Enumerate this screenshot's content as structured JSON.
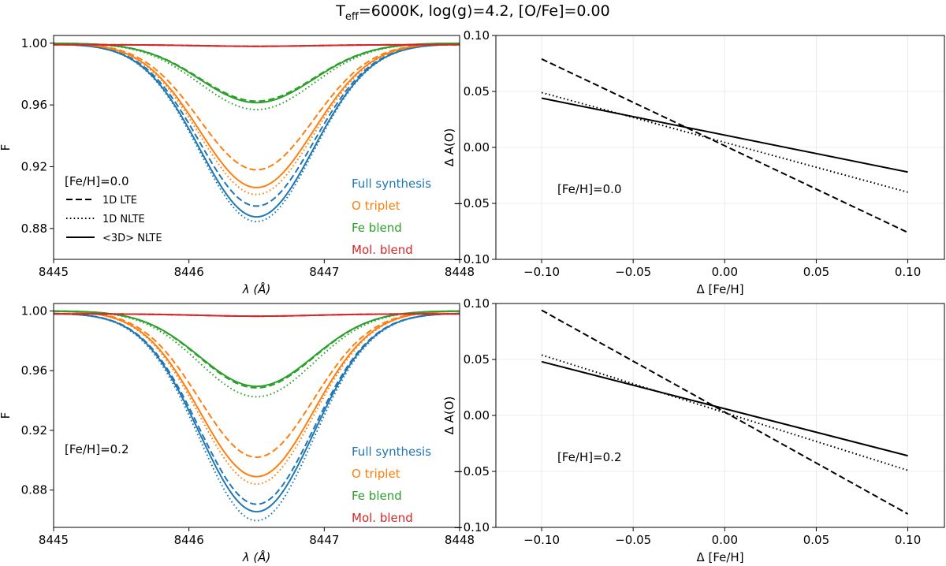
{
  "figure": {
    "title_prefix": "T",
    "title_subscript": "eff",
    "title_suffix": "=6000K, log(g)=4.2, [O/Fe]=0.00"
  },
  "chart_data": [
    {
      "id": "top-left",
      "type": "line",
      "xlabel": "λ (Å)",
      "ylabel": "F",
      "xlim": [
        8445,
        8448
      ],
      "ylim": [
        0.86,
        1.005
      ],
      "xticks": [
        8445,
        8446,
        8447,
        8448
      ],
      "xtick_labels": [
        "8445",
        "8446",
        "8447",
        "8448"
      ],
      "yticks": [
        0.88,
        0.92,
        0.96,
        1.0
      ],
      "ytick_labels": [
        "0.88",
        "0.92",
        "0.96",
        "1.00"
      ],
      "grid": false,
      "line_profile": {
        "center": 8446.5,
        "sigma": 0.42
      },
      "annotation": "[Fe/H]=0.0",
      "style_legend": [
        {
          "label": "1D LTE",
          "dash": "dashed"
        },
        {
          "label": "1D NLTE",
          "dash": "dotted"
        },
        {
          "label": "<3D> NLTE",
          "dash": "solid"
        }
      ],
      "component_legend": [
        {
          "label": "Full synthesis",
          "color": "#1f77b4"
        },
        {
          "label": "O triplet",
          "color": "#ff7f0e"
        },
        {
          "label": "Fe blend",
          "color": "#2ca02c"
        },
        {
          "label": "Mol. blend",
          "color": "#d62728"
        }
      ],
      "series": [
        {
          "name": "Full synthesis 1D LTE",
          "color": "#1f77b4",
          "dash": "dashed",
          "baseline": 0.9995,
          "min": 0.8945
        },
        {
          "name": "Full synthesis 1D NLTE",
          "color": "#1f77b4",
          "dash": "dotted",
          "baseline": 0.9995,
          "min": 0.8845
        },
        {
          "name": "Full synthesis <3D> NLTE",
          "color": "#1f77b4",
          "dash": "solid",
          "baseline": 0.9995,
          "min": 0.8875
        },
        {
          "name": "O triplet 1D LTE",
          "color": "#ff7f0e",
          "dash": "dashed",
          "baseline": 1.0,
          "min": 0.918
        },
        {
          "name": "O triplet 1D NLTE",
          "color": "#ff7f0e",
          "dash": "dotted",
          "baseline": 1.0,
          "min": 0.902
        },
        {
          "name": "O triplet <3D> NLTE",
          "color": "#ff7f0e",
          "dash": "solid",
          "baseline": 1.0,
          "min": 0.9065
        },
        {
          "name": "Fe blend 1D LTE",
          "color": "#2ca02c",
          "dash": "dashed",
          "baseline": 1.0,
          "min": 0.9625
        },
        {
          "name": "Fe blend 1D NLTE",
          "color": "#2ca02c",
          "dash": "dotted",
          "baseline": 1.0,
          "min": 0.957
        },
        {
          "name": "Fe blend <3D> NLTE",
          "color": "#2ca02c",
          "dash": "solid",
          "baseline": 1.0,
          "min": 0.9615
        },
        {
          "name": "Mol. blend 1D LTE",
          "color": "#d62728",
          "dash": "dashed",
          "baseline": 0.999,
          "min": 0.998
        },
        {
          "name": "Mol. blend 1D NLTE",
          "color": "#d62728",
          "dash": "dotted",
          "baseline": 0.999,
          "min": 0.998
        },
        {
          "name": "Mol. blend <3D> NLTE",
          "color": "#d62728",
          "dash": "solid",
          "baseline": 0.999,
          "min": 0.998
        }
      ]
    },
    {
      "id": "top-right",
      "type": "line",
      "xlabel": "Δ [Fe/H]",
      "ylabel": "Δ A(O)",
      "xlim": [
        -0.125,
        0.12
      ],
      "ylim": [
        -0.1,
        0.1
      ],
      "xticks": [
        -0.1,
        -0.05,
        0.0,
        0.05,
        0.1
      ],
      "xtick_labels": [
        "−0.10",
        "−0.05",
        "0.00",
        "0.05",
        "0.10"
      ],
      "yticks": [
        -0.1,
        -0.05,
        0.0,
        0.05,
        0.1
      ],
      "ytick_labels": [
        "−0.10",
        "−0.05",
        "0.00",
        "0.05",
        "0.10"
      ],
      "grid": true,
      "annotation": "[Fe/H]=0.0",
      "series": [
        {
          "name": "1D LTE",
          "dash": "dashed",
          "x": [
            -0.1,
            0.1
          ],
          "y": [
            0.079,
            -0.076
          ]
        },
        {
          "name": "1D NLTE",
          "dash": "dotted",
          "x": [
            -0.1,
            0.1
          ],
          "y": [
            0.049,
            -0.04
          ]
        },
        {
          "name": "<3D> NLTE",
          "dash": "solid",
          "x": [
            -0.1,
            0.1
          ],
          "y": [
            0.044,
            -0.022
          ]
        }
      ]
    },
    {
      "id": "bottom-left",
      "type": "line",
      "xlabel": "λ (Å)",
      "ylabel": "F",
      "xlim": [
        8445,
        8448
      ],
      "ylim": [
        0.855,
        1.005
      ],
      "xticks": [
        8445,
        8446,
        8447,
        8448
      ],
      "xtick_labels": [
        "8445",
        "8446",
        "8447",
        "8448"
      ],
      "yticks": [
        0.88,
        0.92,
        0.96,
        1.0
      ],
      "ytick_labels": [
        "0.88",
        "0.92",
        "0.96",
        "1.00"
      ],
      "grid": false,
      "line_profile": {
        "center": 8446.5,
        "sigma": 0.42
      },
      "annotation": "[Fe/H]=0.2",
      "component_legend": [
        {
          "label": "Full synthesis",
          "color": "#1f77b4"
        },
        {
          "label": "O triplet",
          "color": "#ff7f0e"
        },
        {
          "label": "Fe blend",
          "color": "#2ca02c"
        },
        {
          "label": "Mol. blend",
          "color": "#d62728"
        }
      ],
      "series": [
        {
          "name": "Full synthesis 1D LTE",
          "color": "#1f77b4",
          "dash": "dashed",
          "baseline": 0.9985,
          "min": 0.8705
        },
        {
          "name": "Full synthesis 1D NLTE",
          "color": "#1f77b4",
          "dash": "dotted",
          "baseline": 0.9985,
          "min": 0.8595
        },
        {
          "name": "Full synthesis <3D> NLTE",
          "color": "#1f77b4",
          "dash": "solid",
          "baseline": 0.9985,
          "min": 0.8655
        },
        {
          "name": "O triplet 1D LTE",
          "color": "#ff7f0e",
          "dash": "dashed",
          "baseline": 1.0,
          "min": 0.902
        },
        {
          "name": "O triplet 1D NLTE",
          "color": "#ff7f0e",
          "dash": "dotted",
          "baseline": 1.0,
          "min": 0.884
        },
        {
          "name": "O triplet <3D> NLTE",
          "color": "#ff7f0e",
          "dash": "solid",
          "baseline": 1.0,
          "min": 0.889
        },
        {
          "name": "Fe blend 1D LTE",
          "color": "#2ca02c",
          "dash": "dashed",
          "baseline": 1.0,
          "min": 0.9485
        },
        {
          "name": "Fe blend 1D NLTE",
          "color": "#2ca02c",
          "dash": "dotted",
          "baseline": 1.0,
          "min": 0.9425
        },
        {
          "name": "Fe blend <3D> NLTE",
          "color": "#2ca02c",
          "dash": "solid",
          "baseline": 1.0,
          "min": 0.9495
        },
        {
          "name": "Mol. blend 1D LTE",
          "color": "#d62728",
          "dash": "dashed",
          "baseline": 0.998,
          "min": 0.9965
        },
        {
          "name": "Mol. blend 1D NLTE",
          "color": "#d62728",
          "dash": "dotted",
          "baseline": 0.998,
          "min": 0.9965
        },
        {
          "name": "Mol. blend <3D> NLTE",
          "color": "#d62728",
          "dash": "solid",
          "baseline": 0.998,
          "min": 0.9965
        }
      ]
    },
    {
      "id": "bottom-right",
      "type": "line",
      "xlabel": "Δ [Fe/H]",
      "ylabel": "Δ A(O)",
      "xlim": [
        -0.125,
        0.12
      ],
      "ylim": [
        -0.1,
        0.1
      ],
      "xticks": [
        -0.1,
        -0.05,
        0.0,
        0.05,
        0.1
      ],
      "xtick_labels": [
        "−0.10",
        "−0.05",
        "0.00",
        "0.05",
        "0.10"
      ],
      "yticks": [
        -0.1,
        -0.05,
        0.0,
        0.05,
        0.1
      ],
      "ytick_labels": [
        "−0.10",
        "−0.05",
        "0.00",
        "0.05",
        "0.10"
      ],
      "grid": true,
      "annotation": "[Fe/H]=0.2",
      "series": [
        {
          "name": "1D LTE",
          "dash": "dashed",
          "x": [
            -0.1,
            0.1
          ],
          "y": [
            0.094,
            -0.088
          ]
        },
        {
          "name": "1D NLTE",
          "dash": "dotted",
          "x": [
            -0.1,
            0.1
          ],
          "y": [
            0.054,
            -0.049
          ]
        },
        {
          "name": "<3D> NLTE",
          "dash": "solid",
          "x": [
            -0.1,
            0.1
          ],
          "y": [
            0.048,
            -0.036
          ]
        }
      ]
    }
  ]
}
